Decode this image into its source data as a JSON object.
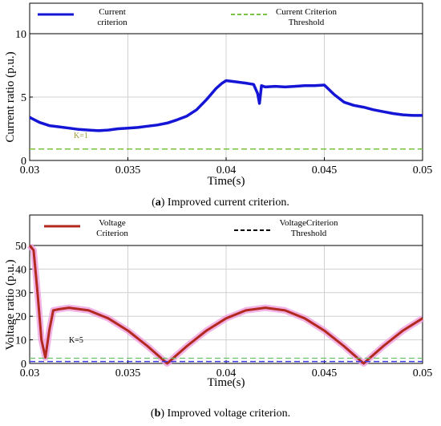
{
  "panel_a_letter": "a",
  "panel_a_caption": " Improved current criterion.",
  "panel_b_letter": "b",
  "panel_b_caption": " Improved voltage criterion.",
  "colors": {
    "current": "#1515d6",
    "threshold_a": "#7ac23e",
    "voltage": "#b22a1f",
    "voltage_shade": "#f0a0e0",
    "threshold_b_green": "#66c266",
    "threshold_b_blue": "#3a3ae0",
    "grid": "#d0d0d0"
  },
  "chart_data": [
    {
      "type": "line",
      "xlabel": "Time(s)",
      "ylabel": "Current ratio (p.u.)",
      "xlim": [
        0.03,
        0.05
      ],
      "ylim": [
        0,
        10
      ],
      "xticks": [
        0.03,
        0.035,
        0.04,
        0.045,
        0.05
      ],
      "xtick_labels": [
        "0.03",
        "0.035",
        "0.04",
        "0.045",
        "0.05"
      ],
      "yticks": [
        0,
        5,
        10
      ],
      "ytick_labels": [
        "0",
        "5",
        "10"
      ],
      "grid": true,
      "legend": [
        "Current criterion",
        "Current Criterion Threshold"
      ],
      "annotation": "K=1",
      "series": [
        {
          "name": "Current criterion",
          "style": "solid",
          "x": [
            0.03,
            0.0305,
            0.031,
            0.0315,
            0.032,
            0.0325,
            0.033,
            0.0335,
            0.034,
            0.0345,
            0.035,
            0.0355,
            0.036,
            0.0365,
            0.037,
            0.0375,
            0.038,
            0.0385,
            0.039,
            0.0395,
            0.0398,
            0.04,
            0.0405,
            0.041,
            0.0414,
            0.0416,
            0.0417,
            0.0418,
            0.042,
            0.0425,
            0.043,
            0.0435,
            0.044,
            0.0445,
            0.045,
            0.0455,
            0.046,
            0.0465,
            0.047,
            0.0475,
            0.048,
            0.0485,
            0.049,
            0.0495,
            0.05
          ],
          "y": [
            3.4,
            3.0,
            2.75,
            2.65,
            2.55,
            2.45,
            2.4,
            2.35,
            2.4,
            2.5,
            2.55,
            2.6,
            2.7,
            2.8,
            2.95,
            3.2,
            3.5,
            4.0,
            4.8,
            5.7,
            6.1,
            6.3,
            6.2,
            6.1,
            6.0,
            5.3,
            4.5,
            5.9,
            5.8,
            5.85,
            5.8,
            5.85,
            5.9,
            5.9,
            5.95,
            5.2,
            4.6,
            4.35,
            4.2,
            4.0,
            3.85,
            3.7,
            3.6,
            3.55,
            3.55
          ]
        },
        {
          "name": "Current Criterion Threshold",
          "style": "dashed",
          "x": [
            0.03,
            0.05
          ],
          "y": [
            0.9,
            0.9
          ]
        }
      ]
    },
    {
      "type": "line",
      "xlabel": "Time(s)",
      "ylabel": "Voltage ratio (p.u.)",
      "xlim": [
        0.03,
        0.05
      ],
      "ylim": [
        0,
        50
      ],
      "xticks": [
        0.03,
        0.035,
        0.04,
        0.045,
        0.05
      ],
      "xtick_labels": [
        "0.03",
        "0.035",
        "0.04",
        "0.045",
        "0.05"
      ],
      "yticks": [
        0,
        10,
        20,
        30,
        40,
        50
      ],
      "ytick_labels": [
        "0",
        "10",
        "20",
        "30",
        "40",
        "50"
      ],
      "grid": true,
      "legend": [
        "Voltage Criterion",
        "VoltageCriterion Threshold"
      ],
      "annotation": "K=5",
      "series": [
        {
          "name": "Voltage Criterion",
          "style": "solid",
          "x": [
            0.03,
            0.0302,
            0.0304,
            0.0306,
            0.0308,
            0.031,
            0.0312,
            0.0315,
            0.032,
            0.033,
            0.034,
            0.035,
            0.036,
            0.037,
            0.038,
            0.039,
            0.04,
            0.041,
            0.042,
            0.043,
            0.044,
            0.045,
            0.046,
            0.047,
            0.048,
            0.049,
            0.05
          ],
          "y": [
            50,
            48,
            30,
            10,
            2.5,
            14,
            22.5,
            23,
            23.6,
            22.5,
            19.1,
            13.9,
            7.3,
            0,
            7.3,
            13.9,
            19.1,
            22.5,
            23.6,
            22.5,
            19.1,
            13.9,
            7.3,
            0,
            7.3,
            13.9,
            19.1
          ]
        },
        {
          "name": "Threshold (green)",
          "style": "dashed",
          "x": [
            0.03,
            0.05
          ],
          "y": [
            2.2,
            2.2
          ]
        },
        {
          "name": "VoltageCriterion Threshold",
          "style": "dashed",
          "x": [
            0.03,
            0.05
          ],
          "y": [
            0.8,
            0.8
          ]
        }
      ]
    }
  ]
}
